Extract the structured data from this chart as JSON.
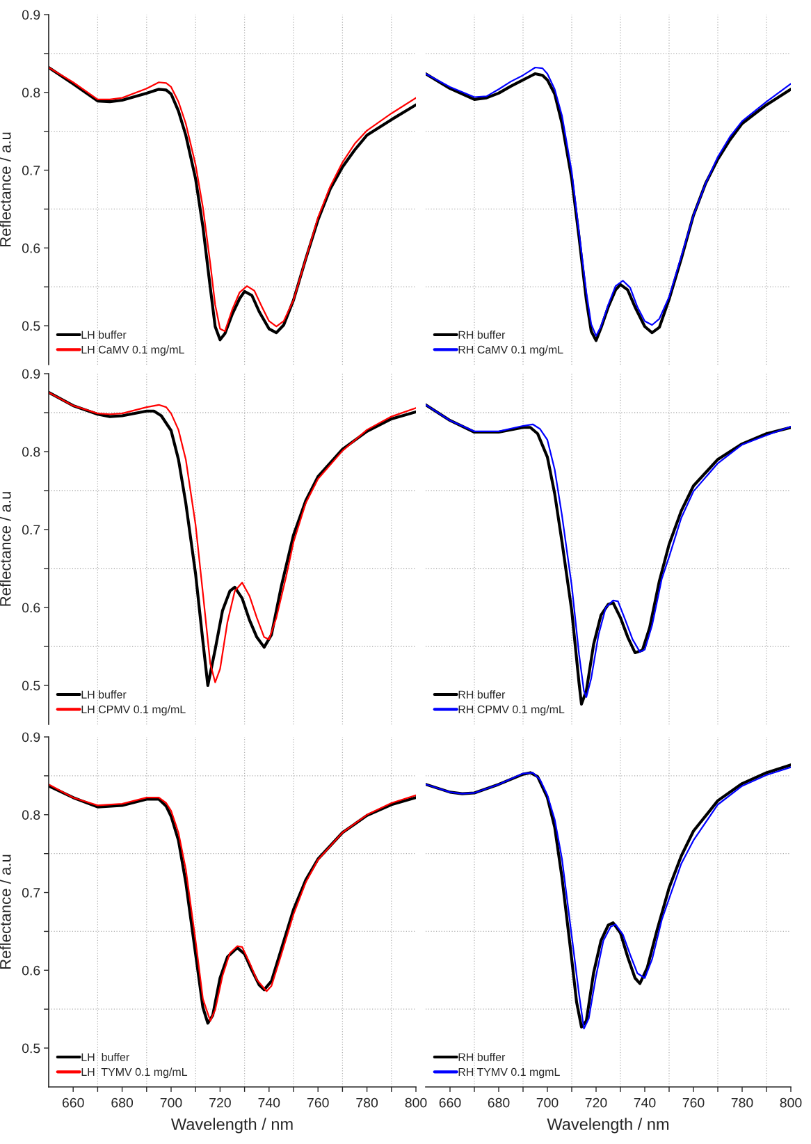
{
  "chart_data": [
    {
      "type": "line",
      "ylabel": "Reflectance / a.u",
      "xlim": [
        650,
        800
      ],
      "ylim": [
        0.45,
        0.9
      ],
      "tick_labels": "y",
      "grid": true,
      "legend": "bottom left",
      "xticks": [
        660,
        {
          "value": 670,
          "label": null
        },
        680,
        {
          "value": 690,
          "label": null
        },
        700,
        {
          "value": 710,
          "label": null
        },
        720,
        {
          "value": 730,
          "label": null
        },
        740,
        {
          "value": 750,
          "label": null
        },
        760,
        {
          "value": 770,
          "label": null
        },
        780,
        {
          "value": 790,
          "label": null
        },
        800
      ],
      "yticks": [
        0.5,
        {
          "value": 0.55,
          "label": null
        },
        0.6,
        {
          "value": 0.65,
          "label": null
        },
        0.7,
        {
          "value": 0.75,
          "label": null
        },
        0.8,
        {
          "value": 0.85,
          "label": null
        },
        0.9
      ],
      "series": [
        {
          "name": "LH buffer",
          "color": "#000000",
          "x": [
            650,
            660,
            670,
            675,
            680,
            690,
            695,
            698,
            700,
            703,
            706,
            710,
            713,
            716,
            718,
            720,
            722,
            725,
            728,
            730,
            733,
            736,
            740,
            743,
            746,
            750,
            755,
            760,
            765,
            770,
            775,
            780,
            790,
            800
          ],
          "values": [
            0.832,
            0.811,
            0.789,
            0.788,
            0.79,
            0.799,
            0.804,
            0.803,
            0.798,
            0.776,
            0.745,
            0.689,
            0.627,
            0.549,
            0.499,
            0.482,
            0.49,
            0.515,
            0.535,
            0.544,
            0.539,
            0.518,
            0.496,
            0.491,
            0.501,
            0.533,
            0.586,
            0.636,
            0.676,
            0.704,
            0.726,
            0.745,
            0.765,
            0.784
          ]
        },
        {
          "name": "LH CaMV 0.1 mg/mL",
          "color": "#ff0000",
          "x": [
            650,
            660,
            670,
            675,
            680,
            690,
            695,
            698,
            700,
            703,
            706,
            710,
            713,
            716,
            718,
            720,
            722,
            725,
            728,
            731,
            734,
            737,
            740,
            743,
            746,
            750,
            755,
            760,
            765,
            770,
            775,
            780,
            790,
            800
          ],
          "values": [
            0.832,
            0.813,
            0.791,
            0.791,
            0.793,
            0.805,
            0.813,
            0.812,
            0.807,
            0.788,
            0.76,
            0.707,
            0.652,
            0.58,
            0.527,
            0.496,
            0.493,
            0.521,
            0.543,
            0.551,
            0.545,
            0.525,
            0.506,
            0.499,
            0.506,
            0.533,
            0.586,
            0.639,
            0.679,
            0.71,
            0.734,
            0.751,
            0.773,
            0.793
          ]
        }
      ]
    },
    {
      "type": "line",
      "xlim": [
        650,
        800
      ],
      "ylim": [
        0.45,
        0.9
      ],
      "tick_labels": false,
      "grid": true,
      "legend": "bottom left",
      "xticks": [
        660,
        {
          "value": 670,
          "label": null
        },
        680,
        {
          "value": 690,
          "label": null
        },
        700,
        {
          "value": 710,
          "label": null
        },
        720,
        {
          "value": 730,
          "label": null
        },
        740,
        {
          "value": 750,
          "label": null
        },
        760,
        {
          "value": 770,
          "label": null
        },
        780,
        {
          "value": 790,
          "label": null
        },
        800
      ],
      "yticks": [
        0.5,
        {
          "value": 0.55,
          "label": null
        },
        0.6,
        {
          "value": 0.65,
          "label": null
        },
        0.7,
        {
          "value": 0.75,
          "label": null
        },
        0.8,
        {
          "value": 0.85,
          "label": null
        },
        0.9
      ],
      "series": [
        {
          "name": "RH buffer",
          "color": "#000000",
          "x": [
            650,
            660,
            670,
            675,
            680,
            685,
            690,
            695,
            698,
            700,
            703,
            706,
            710,
            713,
            716,
            718,
            720,
            722,
            725,
            728,
            730,
            733,
            736,
            740,
            743,
            746,
            750,
            755,
            760,
            765,
            770,
            775,
            780,
            790,
            800
          ],
          "values": [
            0.824,
            0.805,
            0.791,
            0.793,
            0.799,
            0.808,
            0.816,
            0.824,
            0.822,
            0.816,
            0.798,
            0.76,
            0.689,
            0.614,
            0.533,
            0.493,
            0.481,
            0.497,
            0.524,
            0.546,
            0.553,
            0.546,
            0.524,
            0.499,
            0.491,
            0.498,
            0.534,
            0.586,
            0.642,
            0.683,
            0.714,
            0.739,
            0.76,
            0.784,
            0.804
          ]
        },
        {
          "name": "RH CaMV 0.1 mg/mL",
          "color": "#0000ff",
          "x": [
            650,
            660,
            670,
            675,
            680,
            685,
            690,
            695,
            698,
            700,
            703,
            706,
            710,
            713,
            716,
            718,
            720,
            722,
            725,
            728,
            731,
            734,
            737,
            740,
            743,
            746,
            750,
            755,
            760,
            765,
            770,
            775,
            780,
            790,
            800
          ],
          "values": [
            0.824,
            0.807,
            0.794,
            0.795,
            0.804,
            0.814,
            0.822,
            0.832,
            0.831,
            0.824,
            0.804,
            0.77,
            0.698,
            0.62,
            0.543,
            0.502,
            0.487,
            0.499,
            0.527,
            0.551,
            0.558,
            0.549,
            0.524,
            0.506,
            0.501,
            0.509,
            0.537,
            0.589,
            0.642,
            0.683,
            0.717,
            0.743,
            0.763,
            0.788,
            0.811
          ]
        }
      ]
    },
    {
      "type": "line",
      "ylabel": "Reflectance / a.u",
      "xlim": [
        650,
        800
      ],
      "ylim": [
        0.45,
        0.9
      ],
      "tick_labels": "y",
      "grid": true,
      "legend": "bottom left",
      "xticks": [
        660,
        {
          "value": 670,
          "label": null
        },
        680,
        {
          "value": 690,
          "label": null
        },
        700,
        {
          "value": 710,
          "label": null
        },
        720,
        {
          "value": 730,
          "label": null
        },
        740,
        {
          "value": 750,
          "label": null
        },
        760,
        {
          "value": 770,
          "label": null
        },
        780,
        {
          "value": 790,
          "label": null
        },
        800
      ],
      "yticks": [
        0.5,
        {
          "value": 0.55,
          "label": null
        },
        0.6,
        {
          "value": 0.65,
          "label": null
        },
        0.7,
        {
          "value": 0.75,
          "label": null
        },
        0.8,
        {
          "value": 0.85,
          "label": null
        },
        0.9
      ],
      "series": [
        {
          "name": "LH buffer",
          "color": "#000000",
          "x": [
            650,
            660,
            670,
            675,
            680,
            690,
            693,
            696,
            700,
            703,
            706,
            710,
            713,
            715,
            718,
            721,
            724,
            726,
            729,
            732,
            735,
            738,
            741,
            745,
            750,
            755,
            760,
            770,
            780,
            790,
            800
          ],
          "values": [
            0.876,
            0.859,
            0.848,
            0.845,
            0.846,
            0.852,
            0.852,
            0.846,
            0.827,
            0.79,
            0.734,
            0.643,
            0.556,
            0.5,
            0.546,
            0.596,
            0.621,
            0.626,
            0.612,
            0.584,
            0.562,
            0.549,
            0.565,
            0.627,
            0.693,
            0.737,
            0.768,
            0.803,
            0.826,
            0.842,
            0.851
          ]
        },
        {
          "name": "LH CPMV 0.1 mg/mL",
          "color": "#ff0000",
          "x": [
            650,
            660,
            670,
            675,
            680,
            690,
            695,
            698,
            700,
            703,
            706,
            710,
            713,
            716,
            718,
            720,
            723,
            726,
            729,
            732,
            735,
            738,
            740,
            743,
            747,
            750,
            755,
            760,
            770,
            780,
            790,
            800
          ],
          "values": [
            0.876,
            0.859,
            0.849,
            0.848,
            0.849,
            0.857,
            0.86,
            0.857,
            0.849,
            0.828,
            0.79,
            0.706,
            0.618,
            0.528,
            0.504,
            0.521,
            0.581,
            0.621,
            0.632,
            0.615,
            0.587,
            0.562,
            0.559,
            0.587,
            0.64,
            0.684,
            0.734,
            0.765,
            0.801,
            0.828,
            0.845,
            0.856
          ]
        }
      ]
    },
    {
      "type": "line",
      "xlim": [
        650,
        800
      ],
      "ylim": [
        0.45,
        0.9
      ],
      "tick_labels": false,
      "grid": true,
      "legend": "bottom left",
      "xticks": [
        660,
        {
          "value": 670,
          "label": null
        },
        680,
        {
          "value": 690,
          "label": null
        },
        700,
        {
          "value": 710,
          "label": null
        },
        720,
        {
          "value": 730,
          "label": null
        },
        740,
        {
          "value": 750,
          "label": null
        },
        760,
        {
          "value": 770,
          "label": null
        },
        780,
        {
          "value": 790,
          "label": null
        },
        800
      ],
      "yticks": [
        0.5,
        {
          "value": 0.55,
          "label": null
        },
        0.6,
        {
          "value": 0.65,
          "label": null
        },
        0.7,
        {
          "value": 0.75,
          "label": null
        },
        0.8,
        {
          "value": 0.85,
          "label": null
        },
        0.9
      ],
      "series": [
        {
          "name": "RH buffer",
          "color": "#000000",
          "x": [
            650,
            660,
            670,
            680,
            690,
            693,
            696,
            700,
            703,
            706,
            710,
            713,
            714,
            716,
            719,
            722,
            725,
            727,
            730,
            733,
            736,
            739,
            742,
            746,
            750,
            755,
            760,
            770,
            780,
            790,
            800
          ],
          "values": [
            0.86,
            0.84,
            0.825,
            0.825,
            0.831,
            0.831,
            0.823,
            0.793,
            0.746,
            0.684,
            0.596,
            0.503,
            0.476,
            0.493,
            0.553,
            0.59,
            0.604,
            0.606,
            0.587,
            0.562,
            0.542,
            0.545,
            0.574,
            0.634,
            0.681,
            0.724,
            0.756,
            0.79,
            0.81,
            0.823,
            0.831
          ]
        },
        {
          "name": "RH CPMV 0.1 mg/mL",
          "color": "#0000ff",
          "x": [
            650,
            660,
            670,
            680,
            690,
            694,
            697,
            700,
            703,
            706,
            710,
            713,
            715,
            716,
            718,
            721,
            724,
            727,
            729,
            732,
            735,
            738,
            740,
            743,
            747,
            750,
            755,
            760,
            770,
            780,
            790,
            800
          ],
          "values": [
            0.86,
            0.84,
            0.826,
            0.826,
            0.833,
            0.835,
            0.829,
            0.815,
            0.777,
            0.718,
            0.628,
            0.54,
            0.493,
            0.485,
            0.509,
            0.565,
            0.6,
            0.609,
            0.608,
            0.584,
            0.559,
            0.543,
            0.546,
            0.577,
            0.637,
            0.665,
            0.715,
            0.749,
            0.785,
            0.809,
            0.821,
            0.832
          ]
        }
      ]
    },
    {
      "type": "line",
      "ylabel": "Reflectance / a.u",
      "xlabel": "Wavelength / nm",
      "xlim": [
        650,
        800
      ],
      "ylim": [
        0.45,
        0.9
      ],
      "grid": true,
      "legend": "bottom left",
      "xticks": [
        660,
        {
          "value": 670,
          "label": null
        },
        680,
        {
          "value": 690,
          "label": null
        },
        700,
        {
          "value": 710,
          "label": null
        },
        720,
        {
          "value": 730,
          "label": null
        },
        740,
        {
          "value": 750,
          "label": null
        },
        760,
        {
          "value": 770,
          "label": null
        },
        780,
        {
          "value": 790,
          "label": null
        },
        800
      ],
      "yticks": [
        0.5,
        {
          "value": 0.55,
          "label": null
        },
        0.6,
        {
          "value": 0.65,
          "label": null
        },
        0.7,
        {
          "value": 0.75,
          "label": null
        },
        0.8,
        {
          "value": 0.85,
          "label": null
        },
        0.9
      ],
      "series": [
        {
          "name": "LH  buffer",
          "color": "#000000",
          "x": [
            650,
            660,
            670,
            680,
            690,
            695,
            698,
            700,
            703,
            706,
            710,
            713,
            715,
            717,
            720,
            723,
            727,
            730,
            733,
            736,
            738,
            741,
            745,
            750,
            755,
            760,
            770,
            780,
            790,
            800
          ],
          "values": [
            0.837,
            0.822,
            0.81,
            0.812,
            0.82,
            0.82,
            0.811,
            0.798,
            0.767,
            0.713,
            0.621,
            0.552,
            0.532,
            0.542,
            0.59,
            0.617,
            0.629,
            0.621,
            0.6,
            0.581,
            0.575,
            0.586,
            0.627,
            0.678,
            0.716,
            0.743,
            0.777,
            0.799,
            0.813,
            0.822
          ]
        },
        {
          "name": "LH  TYMV 0.1 mg/mL",
          "color": "#ff0000",
          "x": [
            650,
            660,
            670,
            680,
            690,
            695,
            698,
            700,
            703,
            706,
            710,
            713,
            716,
            718,
            721,
            724,
            727,
            729,
            732,
            735,
            739,
            741,
            745,
            750,
            755,
            760,
            770,
            780,
            790,
            800
          ],
          "values": [
            0.839,
            0.822,
            0.812,
            0.814,
            0.822,
            0.822,
            0.815,
            0.805,
            0.777,
            0.73,
            0.638,
            0.563,
            0.535,
            0.549,
            0.593,
            0.622,
            0.631,
            0.63,
            0.61,
            0.588,
            0.573,
            0.58,
            0.62,
            0.672,
            0.713,
            0.742,
            0.777,
            0.8,
            0.815,
            0.825
          ]
        }
      ]
    },
    {
      "type": "line",
      "xlabel": "Wavelength / nm",
      "xlim": [
        650,
        800
      ],
      "ylim": [
        0.45,
        0.9
      ],
      "tick_labels": "x",
      "grid": true,
      "legend": "bottom left",
      "xticks": [
        660,
        {
          "value": 670,
          "label": null
        },
        680,
        {
          "value": 690,
          "label": null
        },
        700,
        {
          "value": 710,
          "label": null
        },
        720,
        {
          "value": 730,
          "label": null
        },
        740,
        {
          "value": 750,
          "label": null
        },
        760,
        {
          "value": 770,
          "label": null
        },
        780,
        {
          "value": 790,
          "label": null
        },
        800
      ],
      "yticks": [
        0.5,
        {
          "value": 0.55,
          "label": null
        },
        0.6,
        {
          "value": 0.65,
          "label": null
        },
        0.7,
        {
          "value": 0.75,
          "label": null
        },
        0.8,
        {
          "value": 0.85,
          "label": null
        },
        0.9
      ],
      "series": [
        {
          "name": "RH buffer",
          "color": "#000000",
          "x": [
            650,
            660,
            665,
            670,
            680,
            690,
            693,
            696,
            700,
            703,
            706,
            710,
            712,
            714,
            716,
            719,
            722,
            725,
            727,
            730,
            733,
            736,
            738,
            741,
            745,
            750,
            755,
            760,
            770,
            780,
            790,
            800
          ],
          "values": [
            0.839,
            0.829,
            0.827,
            0.828,
            0.839,
            0.852,
            0.854,
            0.849,
            0.822,
            0.784,
            0.719,
            0.614,
            0.559,
            0.527,
            0.535,
            0.597,
            0.638,
            0.658,
            0.661,
            0.648,
            0.617,
            0.59,
            0.583,
            0.603,
            0.651,
            0.706,
            0.747,
            0.779,
            0.818,
            0.84,
            0.854,
            0.864
          ]
        },
        {
          "name": "RH TYMV 0.1 mgmL",
          "color": "#0000ff",
          "x": [
            650,
            660,
            665,
            670,
            680,
            690,
            694,
            697,
            700,
            703,
            706,
            710,
            713,
            715,
            717,
            720,
            723,
            726,
            728,
            731,
            734,
            737,
            740,
            743,
            747,
            750,
            755,
            760,
            770,
            780,
            790,
            800
          ],
          "values": [
            0.839,
            0.829,
            0.827,
            0.828,
            0.839,
            0.853,
            0.854,
            0.845,
            0.825,
            0.794,
            0.743,
            0.644,
            0.569,
            0.525,
            0.538,
            0.593,
            0.638,
            0.656,
            0.659,
            0.646,
            0.62,
            0.596,
            0.59,
            0.614,
            0.665,
            0.692,
            0.737,
            0.767,
            0.813,
            0.837,
            0.851,
            0.861
          ]
        }
      ]
    }
  ]
}
